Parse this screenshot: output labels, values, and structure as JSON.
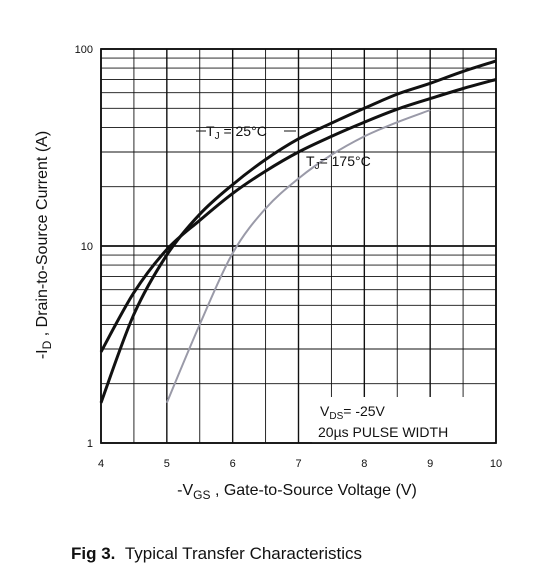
{
  "caption": {
    "fig_label": "Fig 3.",
    "text": "Typical Transfer Characteristics"
  },
  "chart_data": {
    "type": "line",
    "title": "",
    "xlabel": {
      "prefix": "-V",
      "sub": "GS",
      "rest": " , Gate-to-Source Voltage (V)"
    },
    "ylabel": {
      "prefix": "-I",
      "sub": "D",
      "rest": " , Drain-to-Source Current (A)"
    },
    "x_scale": "linear",
    "y_scale": "log",
    "xlim": [
      4,
      10
    ],
    "ylim": [
      1,
      100
    ],
    "x_ticks": [
      "4",
      "5",
      "6",
      "7",
      "8",
      "9",
      "10"
    ],
    "y_ticks": [
      "1",
      "10",
      "100"
    ],
    "grid": true,
    "series": [
      {
        "name": "TJ = 25°C",
        "label": {
          "prefix": "T",
          "sub": "J",
          "rest": " = 25°C"
        },
        "color": "#111111",
        "x": [
          4.0,
          4.5,
          5.0,
          5.5,
          6.0,
          6.5,
          7.0,
          7.5,
          8.0,
          8.5,
          9.0,
          9.5,
          10.0
        ],
        "y": [
          1.6,
          4.5,
          9.0,
          14.5,
          20.5,
          27.5,
          35.0,
          42.0,
          50.0,
          59.0,
          67.0,
          77.0,
          87.0
        ]
      },
      {
        "name": "TJ = 175°C",
        "label": {
          "prefix": "T",
          "sub": "J",
          "rest": "= 175°C"
        },
        "color": "#111111",
        "x": [
          4.0,
          4.5,
          5.0,
          5.5,
          6.0,
          6.5,
          7.0,
          7.5,
          8.0,
          8.5,
          9.0,
          9.5,
          10.0
        ],
        "y": [
          2.9,
          5.8,
          9.6,
          13.5,
          18.5,
          24.0,
          30.0,
          36.0,
          42.5,
          49.5,
          56.0,
          63.0,
          70.0
        ]
      },
      {
        "name": "",
        "color": "#9a9aa8",
        "x": [
          5.0,
          5.5,
          6.0,
          6.5,
          7.0,
          7.5,
          8.0,
          8.5,
          9.0
        ],
        "y": [
          1.6,
          4.0,
          9.2,
          15.5,
          22.0,
          29.0,
          36.0,
          42.5,
          49.0
        ]
      }
    ],
    "annotation": {
      "line1": {
        "prefix": "V",
        "sub": "DS",
        "rest": "= -25V"
      },
      "line2": "20µs PULSE WIDTH"
    }
  }
}
